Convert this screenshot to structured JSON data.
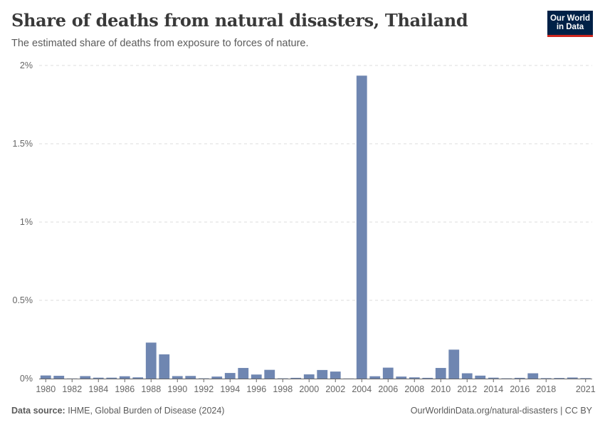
{
  "header": {
    "title": "Share of deaths from natural disasters, Thailand",
    "subtitle": "The estimated share of deaths from exposure to forces of nature."
  },
  "logo": {
    "line1": "Our World",
    "line2": "in Data"
  },
  "footer": {
    "source_label": "Data source:",
    "source_text": "IHME, Global Burden of Disease (2024)",
    "url_text": "OurWorldinData.org/natural-disasters | CC BY"
  },
  "colors": {
    "bar": "#6f86b1",
    "grid": "#dddddd",
    "axis": "#666666",
    "text": "#666666"
  },
  "chart_data": {
    "type": "bar",
    "title": "Share of deaths from natural disasters, Thailand",
    "unit": "%",
    "ylim": [
      0,
      2
    ],
    "yticks": [
      0,
      0.5,
      1,
      1.5,
      2
    ],
    "ytick_labels": [
      "0%",
      "0.5%",
      "1%",
      "1.5%",
      "2%"
    ],
    "xtick_labels": [
      "1980",
      "1982",
      "1984",
      "1986",
      "1988",
      "1990",
      "1992",
      "1994",
      "1996",
      "1998",
      "2000",
      "2002",
      "2004",
      "2006",
      "2008",
      "2010",
      "2012",
      "2014",
      "2016",
      "2018",
      "2021"
    ],
    "categories": [
      1980,
      1981,
      1982,
      1983,
      1984,
      1985,
      1986,
      1987,
      1988,
      1989,
      1990,
      1991,
      1992,
      1993,
      1994,
      1995,
      1996,
      1997,
      1998,
      1999,
      2000,
      2001,
      2002,
      2003,
      2004,
      2005,
      2006,
      2007,
      2008,
      2009,
      2010,
      2011,
      2012,
      2013,
      2014,
      2015,
      2016,
      2017,
      2018,
      2019,
      2020,
      2021
    ],
    "values": [
      0.02,
      0.018,
      0.001,
      0.016,
      0.006,
      0.006,
      0.015,
      0.008,
      0.23,
      0.155,
      0.016,
      0.017,
      0.002,
      0.013,
      0.036,
      0.068,
      0.026,
      0.056,
      0.002,
      0.005,
      0.027,
      0.055,
      0.045,
      0.001,
      1.935,
      0.015,
      0.07,
      0.013,
      0.008,
      0.005,
      0.068,
      0.185,
      0.034,
      0.019,
      0.006,
      0.002,
      0.005,
      0.034,
      0.003,
      0.004,
      0.007,
      0.003
    ],
    "grid": true
  }
}
